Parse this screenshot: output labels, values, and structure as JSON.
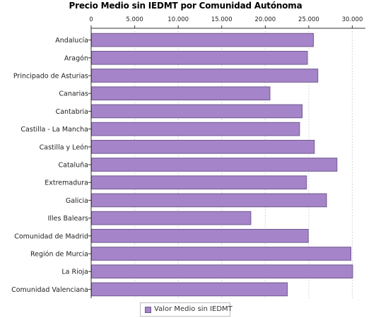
{
  "chart_data": {
    "type": "bar",
    "orientation": "horizontal",
    "title": "Precio Medio sin IEDMT por Comunidad Autónoma",
    "categories": [
      "Andalucía",
      "Aragón",
      "Principado de Asturias",
      "Canarias",
      "Cantabria",
      "Castilla - La Mancha",
      "Castilla y León",
      "Cataluña",
      "Extremadura",
      "Galicia",
      "Illes Balears",
      "Comunidad de Madrid",
      "Región de Murcia",
      "La Rioja",
      "Comunidad Valenciana"
    ],
    "series": [
      {
        "name": "Valor Medio sin IEDMT",
        "values": [
          25500,
          24800,
          26000,
          20500,
          24200,
          23900,
          25600,
          28200,
          24700,
          27000,
          18300,
          24900,
          29800,
          30000,
          22500
        ]
      }
    ],
    "xlim": [
      0,
      31500
    ],
    "xticks": [
      0,
      5000,
      10000,
      15000,
      20000,
      25000,
      30000
    ],
    "xtick_labels": [
      "0",
      "5.000",
      "10.000",
      "15.000",
      "20.000",
      "25.000",
      "30.000"
    ],
    "xaxis_position": "top",
    "xlabel": "",
    "ylabel": "",
    "grid": true,
    "legend_position": "bottom-center",
    "colors": {
      "bar_fill": "#a584c9",
      "bar_stroke": "#6f5a8e",
      "grid": "#d6d6d6",
      "axis": "#333333"
    }
  }
}
